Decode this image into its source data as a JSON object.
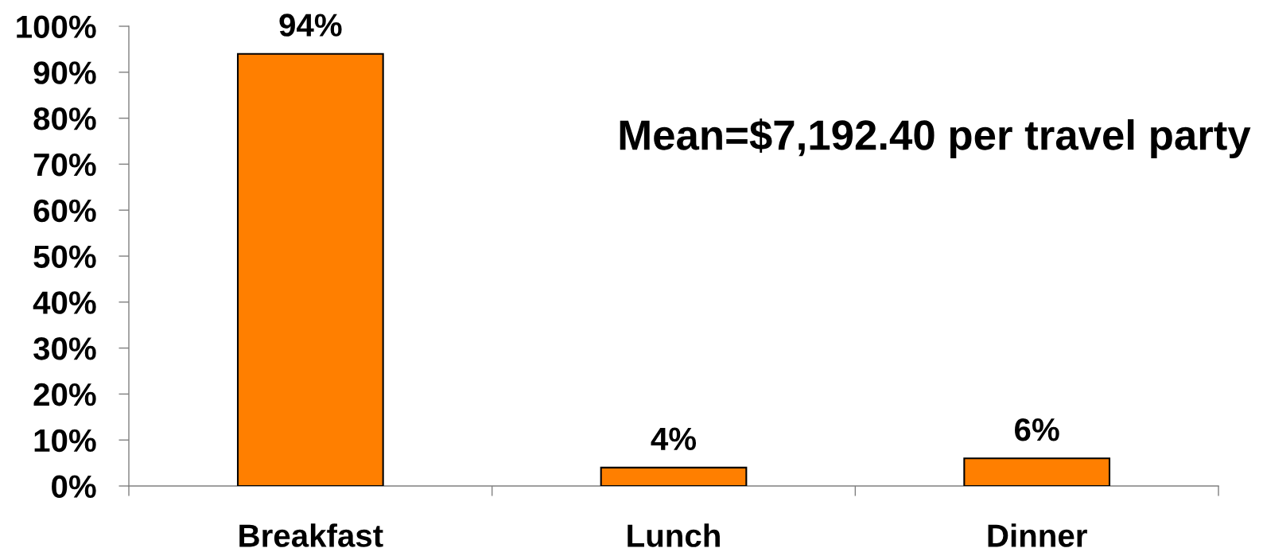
{
  "chart_data": {
    "type": "bar",
    "categories": [
      "Breakfast",
      "Lunch",
      "Dinner"
    ],
    "values": [
      94,
      4,
      6
    ],
    "color": "#ff7f00",
    "value_labels": [
      "94%",
      "4%",
      "6%"
    ],
    "ylim": [
      0,
      100
    ],
    "yticks": [
      {
        "value": 0,
        "label": "0%"
      },
      {
        "value": 10,
        "label": "10%"
      },
      {
        "value": 20,
        "label": "20%"
      },
      {
        "value": 30,
        "label": "30%"
      },
      {
        "value": 40,
        "label": "40%"
      },
      {
        "value": 50,
        "label": "50%"
      },
      {
        "value": 60,
        "label": "60%"
      },
      {
        "value": 70,
        "label": "70%"
      },
      {
        "value": 80,
        "label": "80%"
      },
      {
        "value": 90,
        "label": "90%"
      },
      {
        "value": 100,
        "label": "100%"
      }
    ],
    "annotations": [
      "Mean=$7,192.40 per travel party"
    ],
    "grid": false
  }
}
